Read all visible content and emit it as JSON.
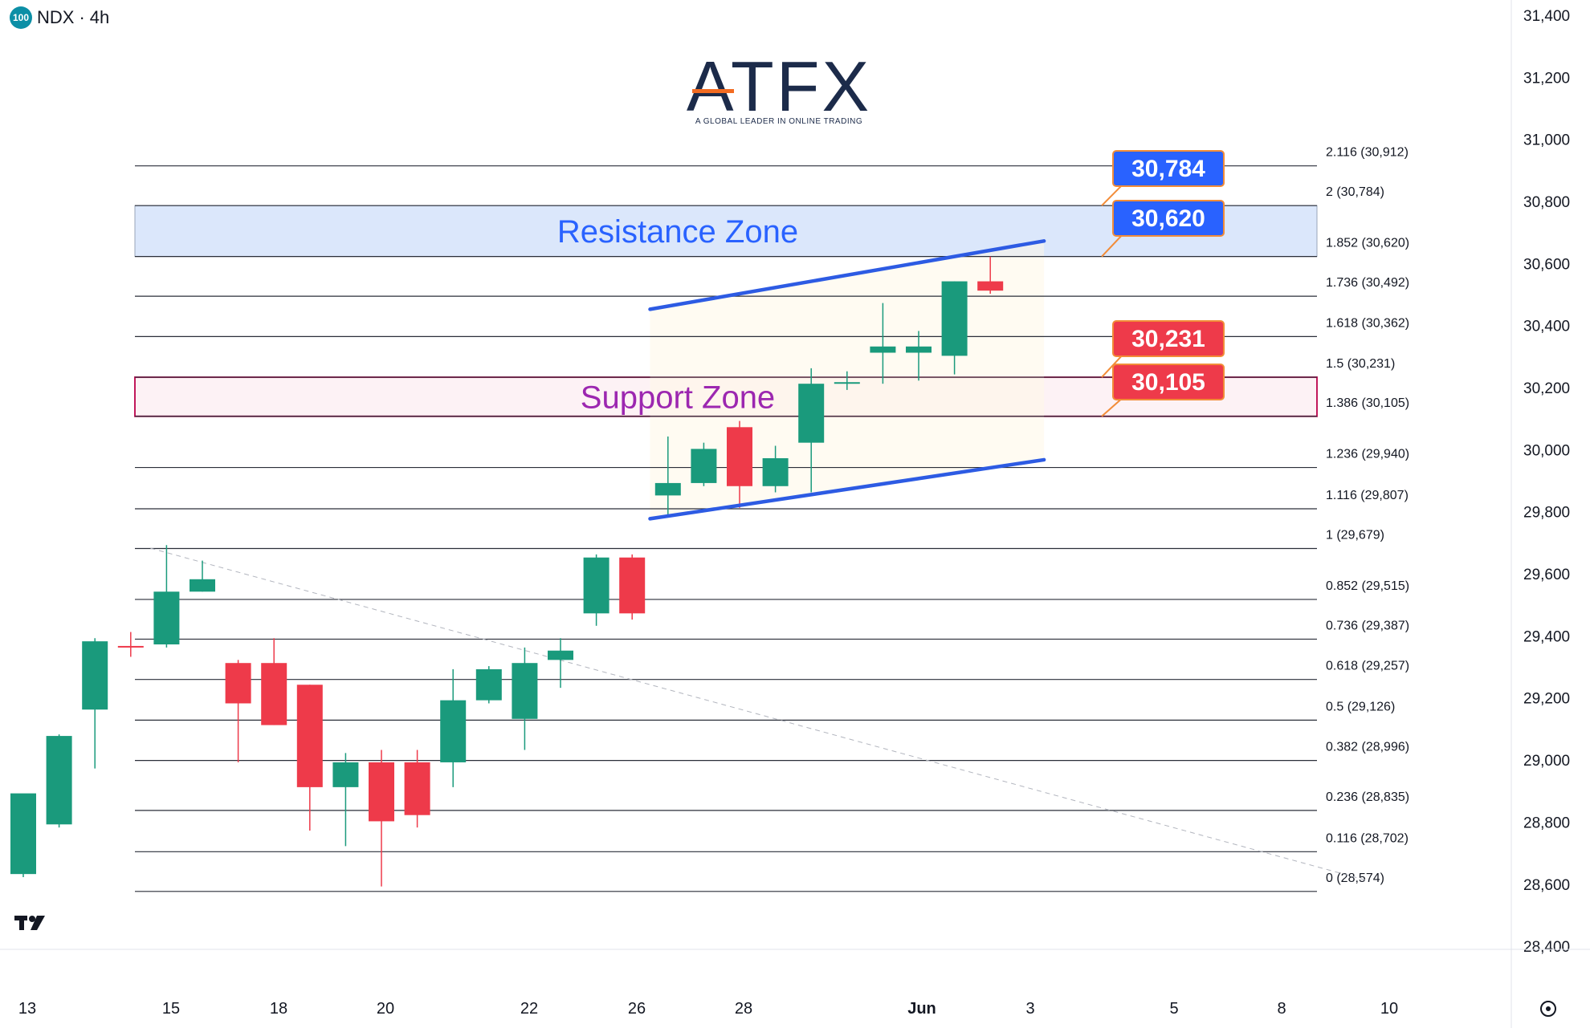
{
  "header": {
    "badge": "100",
    "symbol": "NDX",
    "separator": "·",
    "interval": "4h"
  },
  "logo": {
    "text": "ATFX",
    "tagline": "A GLOBAL LEADER IN ONLINE TRADING",
    "accent_color": "#f26b21",
    "color": "#1c2b4a"
  },
  "chart_data": {
    "type": "candlestick",
    "title": "",
    "ylim": [
      28400,
      31400
    ],
    "y_ticks": [
      "31,400",
      "31,200",
      "31,000",
      "30,800",
      "30,600",
      "30,400",
      "30,200",
      "30,000",
      "29,800",
      "29,600",
      "29,400",
      "29,200",
      "29,000",
      "28,800",
      "28,600",
      "28,400"
    ],
    "y_tick_values": [
      31400,
      31200,
      31000,
      30800,
      30600,
      30400,
      30200,
      30000,
      29800,
      29600,
      29400,
      29200,
      29000,
      28800,
      28600,
      28400
    ],
    "x_ticks": [
      "13",
      "15",
      "18",
      "20",
      "22",
      "26",
      "28",
      "Jun",
      "3",
      "5",
      "8",
      "10"
    ],
    "up_color": "#1a9a7c",
    "down_color": "#ee3a4a",
    "candles": [
      {
        "o": 28630,
        "h": 28870,
        "l": 28620,
        "c": 28890
      },
      {
        "o": 28790,
        "h": 29080,
        "l": 28780,
        "c": 29075
      },
      {
        "o": 29160,
        "h": 29390,
        "l": 28970,
        "c": 29380
      },
      {
        "o": 29365,
        "h": 29410,
        "l": 29330,
        "c": 29360
      },
      {
        "o": 29370,
        "h": 29690,
        "l": 29360,
        "c": 29540
      },
      {
        "o": 29540,
        "h": 29640,
        "l": 29540,
        "c": 29580
      },
      {
        "o": 29310,
        "h": 29320,
        "l": 28990,
        "c": 29180
      },
      {
        "o": 29310,
        "h": 29390,
        "l": 29110,
        "c": 29110
      },
      {
        "o": 29240,
        "h": 29240,
        "l": 28770,
        "c": 28910
      },
      {
        "o": 28910,
        "h": 29020,
        "l": 28720,
        "c": 28990
      },
      {
        "o": 28990,
        "h": 29030,
        "l": 28590,
        "c": 28800
      },
      {
        "o": 28990,
        "h": 29030,
        "l": 28780,
        "c": 28820
      },
      {
        "o": 28990,
        "h": 29290,
        "l": 28910,
        "c": 29190
      },
      {
        "o": 29190,
        "h": 29300,
        "l": 29180,
        "c": 29290
      },
      {
        "o": 29130,
        "h": 29360,
        "l": 29030,
        "c": 29310
      },
      {
        "o": 29320,
        "h": 29390,
        "l": 29230,
        "c": 29350
      },
      {
        "o": 29470,
        "h": 29660,
        "l": 29430,
        "c": 29650
      },
      {
        "o": 29650,
        "h": 29660,
        "l": 29450,
        "c": 29470
      },
      {
        "o": 29850,
        "h": 30040,
        "l": 29780,
        "c": 29890
      },
      {
        "o": 29890,
        "h": 30020,
        "l": 29880,
        "c": 30000
      },
      {
        "o": 30070,
        "h": 30090,
        "l": 29810,
        "c": 29880
      },
      {
        "o": 29880,
        "h": 30010,
        "l": 29860,
        "c": 29970
      },
      {
        "o": 30020,
        "h": 30260,
        "l": 29860,
        "c": 30210
      },
      {
        "o": 30210,
        "h": 30250,
        "l": 30190,
        "c": 30215
      },
      {
        "o": 30310,
        "h": 30470,
        "l": 30210,
        "c": 30330
      },
      {
        "o": 30310,
        "h": 30380,
        "l": 30220,
        "c": 30330
      },
      {
        "o": 30300,
        "h": 30540,
        "l": 30240,
        "c": 30540
      },
      {
        "o": 30540,
        "h": 30620,
        "l": 30500,
        "c": 30510
      }
    ],
    "fib_levels": [
      {
        "ratio": "2.116",
        "value": 30912,
        "label": "2.116 (30,912)"
      },
      {
        "ratio": "2",
        "value": 30784,
        "label": "2 (30,784)"
      },
      {
        "ratio": "1.852",
        "value": 30620,
        "label": "1.852 (30,620)"
      },
      {
        "ratio": "1.736",
        "value": 30492,
        "label": "1.736 (30,492)"
      },
      {
        "ratio": "1.618",
        "value": 30362,
        "label": "1.618 (30,362)"
      },
      {
        "ratio": "1.5",
        "value": 30231,
        "label": "1.5 (30,231)"
      },
      {
        "ratio": "1.386",
        "value": 30105,
        "label": "1.386 (30,105)"
      },
      {
        "ratio": "1.236",
        "value": 29940,
        "label": "1.236 (29,940)"
      },
      {
        "ratio": "1.116",
        "value": 29807,
        "label": "1.116 (29,807)"
      },
      {
        "ratio": "1",
        "value": 29679,
        "label": "1 (29,679)"
      },
      {
        "ratio": "0.852",
        "value": 29515,
        "label": "0.852 (29,515)"
      },
      {
        "ratio": "0.736",
        "value": 29387,
        "label": "0.736 (29,387)"
      },
      {
        "ratio": "0.618",
        "value": 29257,
        "label": "0.618 (29,257)"
      },
      {
        "ratio": "0.5",
        "value": 29126,
        "label": "0.5 (29,126)"
      },
      {
        "ratio": "0.382",
        "value": 28996,
        "label": "0.382 (28,996)"
      },
      {
        "ratio": "0.236",
        "value": 28835,
        "label": "0.236 (28,835)"
      },
      {
        "ratio": "0.116",
        "value": 28702,
        "label": "0.116 (28,702)"
      },
      {
        "ratio": "0",
        "value": 28574,
        "label": "0 (28,574)"
      }
    ],
    "zones": [
      {
        "name": "resistance",
        "label": "Resistance Zone",
        "from": 30620,
        "to": 30784,
        "color": "#2962ff",
        "fill": "#dbe7fb"
      },
      {
        "name": "support",
        "label": "Support Zone",
        "from": 30105,
        "to": 30231,
        "color": "#9c27b0",
        "fill": "#fdf2f5"
      }
    ],
    "price_callouts": [
      {
        "text": "30,784",
        "value": 30784,
        "color": "#2962ff"
      },
      {
        "text": "30,620",
        "value": 30620,
        "color": "#2962ff"
      },
      {
        "text": "30,231",
        "value": 30231,
        "color": "#ee3a4a"
      },
      {
        "text": "30,105",
        "value": 30105,
        "color": "#ee3a4a"
      }
    ],
    "trend_channel": {
      "color": "#2d5be3",
      "upper": [
        {
          "bar": 17.5,
          "price": 30450
        },
        {
          "bar": 28.5,
          "price": 30670
        }
      ],
      "lower": [
        {
          "bar": 17.5,
          "price": 29775
        },
        {
          "bar": 28.5,
          "price": 29965
        }
      ]
    },
    "dashed_trend": [
      {
        "bar": 4,
        "price": 29680
      },
      {
        "bar": 37.5,
        "price": 28610
      }
    ]
  }
}
